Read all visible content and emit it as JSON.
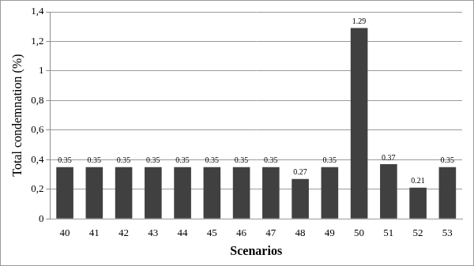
{
  "chart_data": {
    "type": "bar",
    "x_label": "Scenarios",
    "y_label": "Total condemnation (%)",
    "categories": [
      "40",
      "41",
      "42",
      "43",
      "44",
      "45",
      "46",
      "47",
      "48",
      "49",
      "50",
      "51",
      "52",
      "53"
    ],
    "values": [
      0.35,
      0.35,
      0.35,
      0.35,
      0.35,
      0.35,
      0.35,
      0.35,
      0.27,
      0.35,
      1.29,
      0.37,
      0.21,
      0.35
    ],
    "color": "#404040",
    "ylim": [
      0,
      1.4
    ],
    "yticks": [
      0,
      {
        "value": 0.2,
        "label": "0,2"
      },
      {
        "value": 0.4,
        "label": "0,4"
      },
      {
        "value": 0.6,
        "label": "0,6"
      },
      {
        "value": 0.8,
        "label": "0,8"
      },
      1,
      {
        "value": 1.2,
        "label": "1,2"
      },
      {
        "value": 1.4,
        "label": "1,4"
      }
    ],
    "grid": true,
    "data_labels": true
  }
}
